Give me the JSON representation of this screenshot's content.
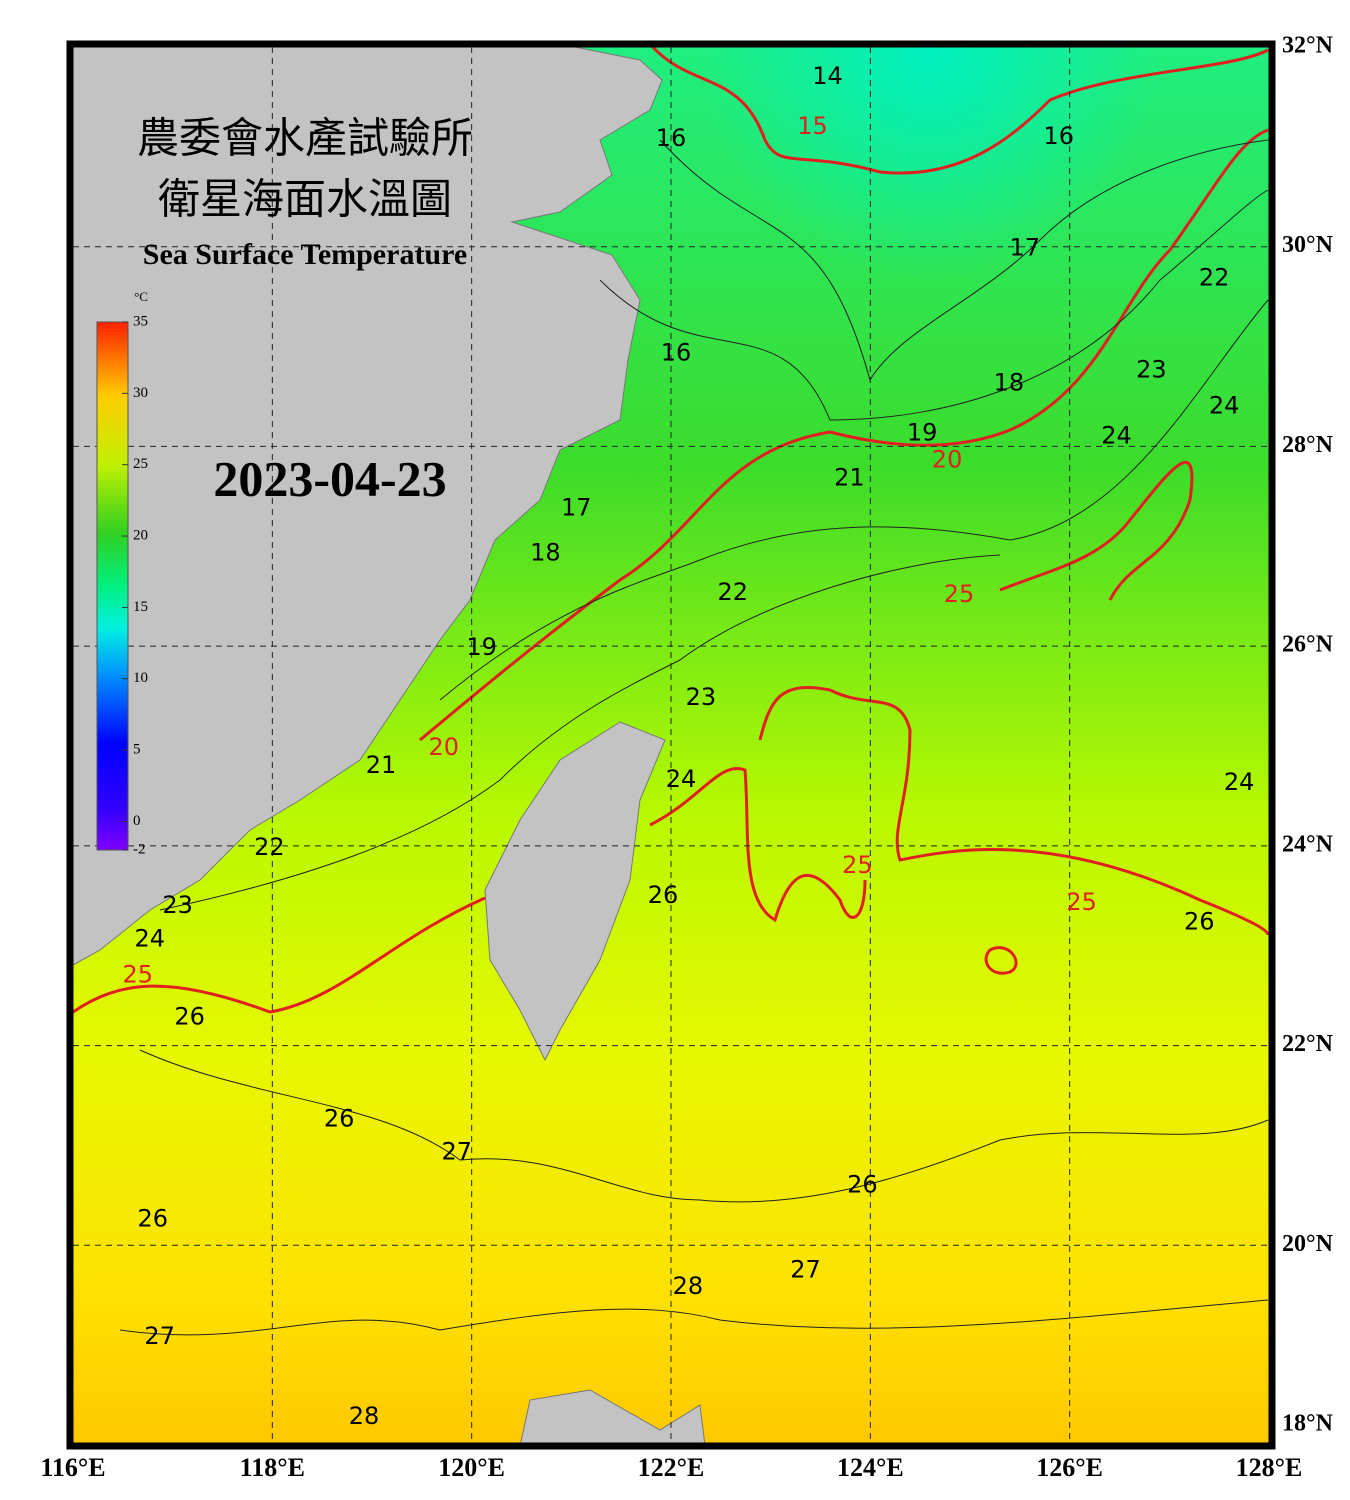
{
  "title_lines": [
    "農委會水產試驗所",
    "衛星海面水溫圖"
  ],
  "subtitle": "Sea Surface Temperature",
  "date": "2023-04-23",
  "colorbar": {
    "unit": "°C",
    "lim": [
      -2,
      35
    ],
    "ticks": [
      35,
      30,
      25,
      20,
      15,
      10,
      5,
      0,
      -2
    ]
  },
  "lon_ticks": [
    {
      "value": 116,
      "label": "116°E"
    },
    {
      "value": 118,
      "label": "118°E"
    },
    {
      "value": 120,
      "label": "120°E"
    },
    {
      "value": 122,
      "label": "122°E"
    },
    {
      "value": 124,
      "label": "124°E"
    },
    {
      "value": 126,
      "label": "126°E"
    },
    {
      "value": 128,
      "label": "128°E"
    }
  ],
  "lat_ticks": [
    {
      "value": 32,
      "label": "32°N"
    },
    {
      "value": 30,
      "label": "30°N"
    },
    {
      "value": 28,
      "label": "28°N"
    },
    {
      "value": 26,
      "label": "26°N"
    },
    {
      "value": 24,
      "label": "24°N"
    },
    {
      "value": 22,
      "label": "22°N"
    },
    {
      "value": 20,
      "label": "20°N"
    },
    {
      "value": 18,
      "label": "18°N"
    }
  ],
  "contour_labels": [
    {
      "value": 14,
      "lon": 123.57,
      "lat": 31.7
    },
    {
      "value": 15,
      "lon": 123.42,
      "lat": 31.2
    },
    {
      "value": 16,
      "lon": 122.0,
      "lat": 31.08
    },
    {
      "value": 16,
      "lon": 125.89,
      "lat": 31.1
    },
    {
      "value": 17,
      "lon": 125.55,
      "lat": 29.98
    },
    {
      "value": 22,
      "lon": 127.45,
      "lat": 29.68
    },
    {
      "value": 16,
      "lon": 122.05,
      "lat": 28.93
    },
    {
      "value": 18,
      "lon": 125.39,
      "lat": 28.63
    },
    {
      "value": 23,
      "lon": 126.82,
      "lat": 28.76
    },
    {
      "value": 24,
      "lon": 127.55,
      "lat": 28.4
    },
    {
      "value": 19,
      "lon": 124.52,
      "lat": 28.13
    },
    {
      "value": 20,
      "lon": 124.77,
      "lat": 27.86
    },
    {
      "value": 24,
      "lon": 126.47,
      "lat": 28.1
    },
    {
      "value": 21,
      "lon": 123.79,
      "lat": 27.68
    },
    {
      "value": 17,
      "lon": 121.05,
      "lat": 27.38
    },
    {
      "value": 18,
      "lon": 120.74,
      "lat": 26.93
    },
    {
      "value": 25,
      "lon": 124.89,
      "lat": 26.51
    },
    {
      "value": 22,
      "lon": 122.62,
      "lat": 26.53
    },
    {
      "value": 19,
      "lon": 120.1,
      "lat": 25.98
    },
    {
      "value": 23,
      "lon": 122.3,
      "lat": 25.48
    },
    {
      "value": 20,
      "lon": 119.72,
      "lat": 24.98
    },
    {
      "value": 21,
      "lon": 119.09,
      "lat": 24.8
    },
    {
      "value": 24,
      "lon": 122.1,
      "lat": 24.66
    },
    {
      "value": 24,
      "lon": 127.7,
      "lat": 24.63
    },
    {
      "value": 25,
      "lon": 123.87,
      "lat": 23.8
    },
    {
      "value": 26,
      "lon": 121.92,
      "lat": 23.5
    },
    {
      "value": 25,
      "lon": 126.12,
      "lat": 23.43
    },
    {
      "value": 26,
      "lon": 127.3,
      "lat": 23.23
    },
    {
      "value": 22,
      "lon": 117.97,
      "lat": 23.98
    },
    {
      "value": 23,
      "lon": 117.05,
      "lat": 23.4
    },
    {
      "value": 24,
      "lon": 116.77,
      "lat": 23.06
    },
    {
      "value": 25,
      "lon": 116.65,
      "lat": 22.7
    },
    {
      "value": 26,
      "lon": 117.17,
      "lat": 22.28
    },
    {
      "value": 26,
      "lon": 118.67,
      "lat": 21.26
    },
    {
      "value": 27,
      "lon": 119.85,
      "lat": 20.93
    },
    {
      "value": 26,
      "lon": 123.92,
      "lat": 20.6
    },
    {
      "value": 26,
      "lon": 116.8,
      "lat": 20.26
    },
    {
      "value": 27,
      "lon": 123.35,
      "lat": 19.75
    },
    {
      "value": 28,
      "lon": 122.17,
      "lat": 19.58
    },
    {
      "value": 27,
      "lon": 116.87,
      "lat": 19.08
    },
    {
      "value": 28,
      "lon": 118.92,
      "lat": 18.28
    }
  ]
}
